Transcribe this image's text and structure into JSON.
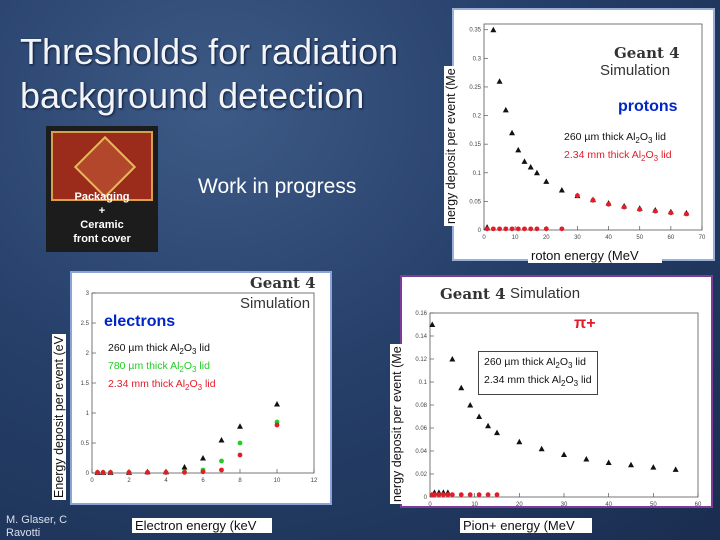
{
  "slide": {
    "title_line1": "Thresholds for radiation",
    "title_line2": "background detection",
    "work_in_progress": "Work in  progress",
    "chip_caption": [
      "Packaging",
      "+",
      "Ceramic",
      "front cover"
    ],
    "footer_line1": "M. Glaser, C",
    "footer_line2": "Ravotti"
  },
  "colors": {
    "red_series": "#e11d2a",
    "green_series": "#22cc22",
    "black_series": "#111111",
    "pion_frame": "#7c3c97"
  },
  "protons": {
    "ylabel": "nergy deposit per event (Me",
    "xlabel": "roton energy (MeV",
    "geant": "Geant 4",
    "sim": "Simulation",
    "particle": "protons",
    "legend": [
      "260 µm thick Al2O3 lid",
      "2.34 mm thick Al2O3 lid"
    ]
  },
  "electrons": {
    "ylabel": "Energy deposit per event (eV",
    "xlabel": "Electron energy (keV",
    "geant": "Geant 4",
    "sim": "Simulation",
    "particle": "electrons",
    "legend": [
      "260 µm thick Al2O3 lid",
      "780 µm thick Al2O3 lid",
      "2.34 mm thick Al2O3 lid"
    ]
  },
  "pions": {
    "ylabel": "nergy deposit per event (Me",
    "xlabel": "Pion+ energy (MeV",
    "geant": "Geant 4",
    "sim": "Simulation",
    "particle": "π+",
    "legend": [
      "260 µm thick Al2O3 lid",
      "2.34 mm thick Al2O3 lid"
    ]
  },
  "chart_data": [
    {
      "type": "scatter",
      "ylabel": "nergy deposit per event (Me",
      "xlabel": "roton energy (MeV",
      "xlim": [
        0,
        70
      ],
      "ylim": [
        0,
        0.36
      ],
      "xticks": [
        0,
        10,
        20,
        30,
        40,
        50,
        60,
        70
      ],
      "yticks": [
        0,
        0.05,
        0.1,
        0.15,
        0.2,
        0.25,
        0.3,
        0.35
      ],
      "series": [
        {
          "name": "260 µm thick Al2O3 lid",
          "marker": "triangle",
          "color": "#111111",
          "x": [
            1,
            3,
            5,
            7,
            9,
            11,
            13,
            15,
            17,
            20,
            25,
            30,
            35,
            40,
            45,
            50,
            55,
            60,
            65
          ],
          "y": [
            0.005,
            0.35,
            0.26,
            0.21,
            0.17,
            0.14,
            0.12,
            0.11,
            0.1,
            0.085,
            0.07,
            0.06,
            0.053,
            0.047,
            0.042,
            0.038,
            0.035,
            0.032,
            0.03
          ]
        },
        {
          "name": "2.34 mm thick Al2O3 lid",
          "marker": "circle",
          "color": "#e11d2a",
          "x": [
            1,
            3,
            5,
            7,
            9,
            11,
            13,
            15,
            17,
            20,
            25,
            30,
            35,
            40,
            45,
            50,
            55,
            60,
            65
          ],
          "y": [
            0.002,
            0.002,
            0.002,
            0.002,
            0.002,
            0.002,
            0.002,
            0.002,
            0.002,
            0.002,
            0.002,
            0.06,
            0.052,
            0.045,
            0.04,
            0.036,
            0.033,
            0.03,
            0.028
          ]
        }
      ]
    },
    {
      "type": "scatter",
      "ylabel": "Energy deposit per event (eV",
      "xlabel": "Electron energy (keV",
      "xlim": [
        0,
        12
      ],
      "ylim": [
        0,
        3
      ],
      "xticks": [
        0,
        2,
        4,
        6,
        8,
        10,
        12
      ],
      "yticks": [
        0,
        0.5,
        1,
        1.5,
        2,
        2.5,
        3
      ],
      "series": [
        {
          "name": "260 µm thick Al2O3 lid",
          "marker": "triangle",
          "color": "#111111",
          "x": [
            0.3,
            0.6,
            1,
            2,
            3,
            4,
            5,
            6,
            7,
            8,
            10
          ],
          "y": [
            0.01,
            0.01,
            0.01,
            0.01,
            0.02,
            0.02,
            0.1,
            0.25,
            0.55,
            0.78,
            1.15
          ]
        },
        {
          "name": "780 µm thick Al2O3 lid",
          "marker": "circle",
          "color": "#22cc22",
          "x": [
            0.3,
            0.6,
            1,
            2,
            3,
            4,
            5,
            6,
            7,
            8,
            10
          ],
          "y": [
            0.01,
            0.01,
            0.01,
            0.01,
            0.01,
            0.01,
            0.02,
            0.05,
            0.2,
            0.5,
            0.85
          ]
        },
        {
          "name": "2.34 mm thick Al2O3 lid",
          "marker": "circle",
          "color": "#e11d2a",
          "x": [
            0.3,
            0.6,
            1,
            2,
            3,
            4,
            5,
            6,
            7,
            8,
            10
          ],
          "y": [
            0.01,
            0.01,
            0.01,
            0.01,
            0.01,
            0.01,
            0.01,
            0.02,
            0.05,
            0.3,
            0.8
          ]
        }
      ]
    },
    {
      "type": "scatter",
      "ylabel": "nergy deposit per event (Me",
      "xlabel": "Pion+ energy (MeV",
      "xlim": [
        0,
        60
      ],
      "ylim": [
        0,
        0.16
      ],
      "xticks": [
        0,
        10,
        20,
        30,
        40,
        50,
        60
      ],
      "yticks": [
        0,
        0.02,
        0.04,
        0.06,
        0.08,
        0.1,
        0.12,
        0.14,
        0.16
      ],
      "series": [
        {
          "name": "260 µm thick Al2O3 lid",
          "marker": "triangle",
          "color": "#111111",
          "x": [
            0.5,
            1,
            2,
            3,
            4,
            5,
            7,
            9,
            11,
            13,
            15,
            20,
            25,
            30,
            35,
            40,
            45,
            50,
            55
          ],
          "y": [
            0.15,
            0.004,
            0.004,
            0.004,
            0.004,
            0.12,
            0.095,
            0.08,
            0.07,
            0.062,
            0.056,
            0.048,
            0.042,
            0.037,
            0.033,
            0.03,
            0.028,
            0.026,
            0.024
          ]
        },
        {
          "name": "2.34 mm thick Al2O3 lid",
          "marker": "circle",
          "color": "#e11d2a",
          "x": [
            0.5,
            1,
            2,
            3,
            4,
            5,
            7,
            9,
            11,
            13,
            15
          ],
          "y": [
            0.002,
            0.002,
            0.002,
            0.002,
            0.002,
            0.002,
            0.002,
            0.002,
            0.002,
            0.002,
            0.002
          ]
        }
      ]
    }
  ]
}
